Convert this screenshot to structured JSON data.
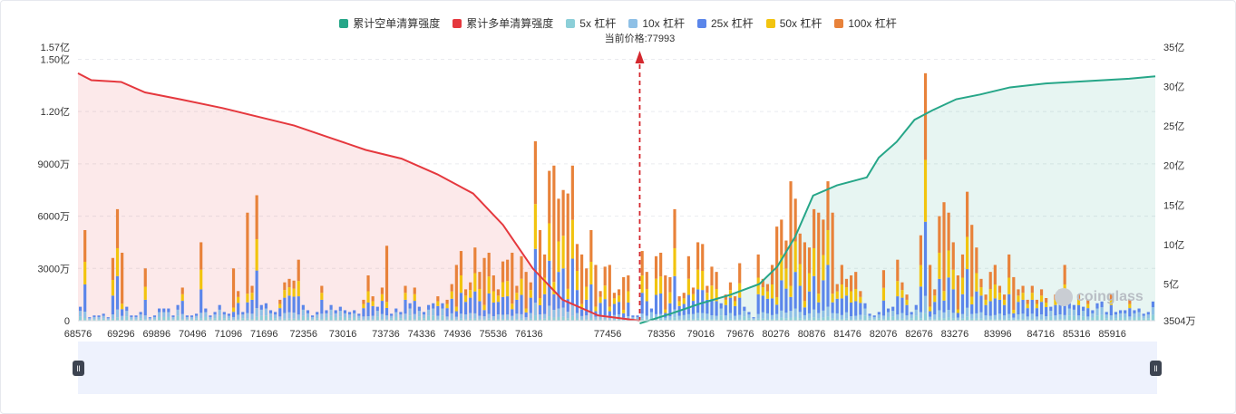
{
  "legend": [
    {
      "label": "累计空单清算强度",
      "color": "#26a688"
    },
    {
      "label": "累计多单清算强度",
      "color": "#e5383e"
    },
    {
      "label": "5x 杠杆",
      "color": "#8ccfd8"
    },
    {
      "label": "10x 杠杆",
      "color": "#8ec0e6"
    },
    {
      "label": "25x 杠杆",
      "color": "#5b86ea"
    },
    {
      "label": "50x 杠杆",
      "color": "#f2c40f"
    },
    {
      "label": "100x 杠杆",
      "color": "#e8823a"
    }
  ],
  "current_price_label": "当前价格:77993",
  "watermark": "coinglass",
  "chart_data": {
    "type": "bar",
    "x_ticks": [
      "68576",
      "69296",
      "69896",
      "70496",
      "71096",
      "71696",
      "72356",
      "73016",
      "73736",
      "74336",
      "74936",
      "75536",
      "76136",
      "77456",
      "78356",
      "79016",
      "79676",
      "80276",
      "80876",
      "81476",
      "82076",
      "82676",
      "83276",
      "83996",
      "84716",
      "85316",
      "85916"
    ],
    "x_range": [
      68576,
      86636
    ],
    "current_price": 77993,
    "y_left_ticks": [
      "0",
      "3000万",
      "6000万",
      "9000万",
      "1.20亿",
      "1.50亿",
      "1.57亿"
    ],
    "y_left_values": [
      0,
      30000000,
      60000000,
      90000000,
      120000000,
      150000000,
      157000000
    ],
    "y_left_range": [
      0,
      157000000
    ],
    "y_right_ticks": [
      "3504万",
      "5亿",
      "10亿",
      "15亿",
      "20亿",
      "25亿",
      "30亿",
      "35亿"
    ],
    "y_right_values": [
      35040000,
      500000000,
      1000000000,
      1500000000,
      2000000000,
      2500000000,
      3000000000,
      3500000000
    ],
    "y_right_range": [
      35040000,
      3500000000
    ],
    "leverage_series": [
      "5x",
      "10x",
      "25x",
      "50x",
      "100x"
    ],
    "bar_values_millions": [
      8,
      52,
      2,
      3,
      3,
      4,
      2,
      36,
      64,
      39,
      8,
      3,
      3,
      5,
      30,
      2,
      3,
      7,
      7,
      7,
      3,
      9,
      19,
      3,
      3,
      4,
      45,
      7,
      3,
      5,
      9,
      5,
      4,
      30,
      17,
      5,
      62,
      20,
      72,
      9,
      10,
      6,
      5,
      12,
      22,
      24,
      23,
      35,
      9,
      6,
      3,
      5,
      20,
      6,
      9,
      6,
      8,
      6,
      5,
      6,
      4,
      12,
      26,
      14,
      8,
      19,
      43,
      4,
      7,
      5,
      20,
      10,
      19,
      8,
      5,
      9,
      10,
      14,
      10,
      12,
      21,
      32,
      40,
      18,
      22,
      42,
      28,
      36,
      39,
      26,
      18,
      34,
      35,
      39,
      20,
      37,
      28,
      22,
      103,
      52,
      38,
      86,
      89,
      70,
      75,
      73,
      89,
      44,
      38,
      30,
      52,
      32,
      17,
      31,
      32,
      16,
      18,
      25,
      26,
      3,
      3,
      40,
      28,
      7,
      37,
      39,
      26,
      25,
      64,
      14,
      16,
      37,
      19,
      45,
      44,
      20,
      31,
      28,
      10,
      15,
      22,
      14,
      33,
      8,
      5,
      2,
      38,
      24,
      21,
      32,
      54,
      58,
      46,
      80,
      70,
      50,
      45,
      42,
      64,
      62,
      58,
      80,
      62,
      21,
      32,
      24,
      26,
      28,
      17,
      10,
      4,
      3,
      5,
      29,
      7,
      8,
      35,
      22,
      15,
      5,
      9,
      49,
      142,
      32,
      18,
      60,
      68,
      62,
      45,
      26,
      38,
      74,
      55,
      42,
      24,
      15,
      28,
      32,
      20,
      15,
      38,
      25,
      18,
      20,
      12,
      20,
      12,
      18,
      13,
      8,
      15,
      18,
      32,
      10,
      9,
      15,
      8,
      12,
      6,
      10,
      11,
      5,
      15,
      5,
      6,
      6,
      12,
      6,
      7,
      4,
      5,
      11
    ],
    "short_cum_points_yi": [
      [
        77993,
        0.0
      ],
      [
        78500,
        1.2
      ],
      [
        79000,
        2.5
      ],
      [
        79500,
        3.6
      ],
      [
        80000,
        5.0
      ],
      [
        80300,
        7.2
      ],
      [
        80600,
        11.0
      ],
      [
        80900,
        16.2
      ],
      [
        81300,
        17.5
      ],
      [
        81800,
        18.5
      ],
      [
        82000,
        21.0
      ],
      [
        82300,
        23.0
      ],
      [
        82600,
        25.8
      ],
      [
        82900,
        27.0
      ],
      [
        83300,
        28.4
      ],
      [
        83700,
        29.0
      ],
      [
        84200,
        29.9
      ],
      [
        84800,
        30.4
      ],
      [
        85500,
        30.7
      ],
      [
        86200,
        31.0
      ],
      [
        86636,
        31.3
      ]
    ],
    "long_cum_points_yi": [
      [
        68576,
        1.42
      ],
      [
        68800,
        1.38
      ],
      [
        69300,
        1.37
      ],
      [
        69700,
        1.31
      ],
      [
        70300,
        1.27
      ],
      [
        71000,
        1.22
      ],
      [
        71600,
        1.17
      ],
      [
        72200,
        1.12
      ],
      [
        72800,
        1.05
      ],
      [
        73400,
        0.98
      ],
      [
        74000,
        0.93
      ],
      [
        74600,
        0.84
      ],
      [
        75200,
        0.73
      ],
      [
        75700,
        0.55
      ],
      [
        76200,
        0.3
      ],
      [
        76700,
        0.12
      ],
      [
        77300,
        0.03
      ],
      [
        77993,
        0.0
      ]
    ]
  }
}
